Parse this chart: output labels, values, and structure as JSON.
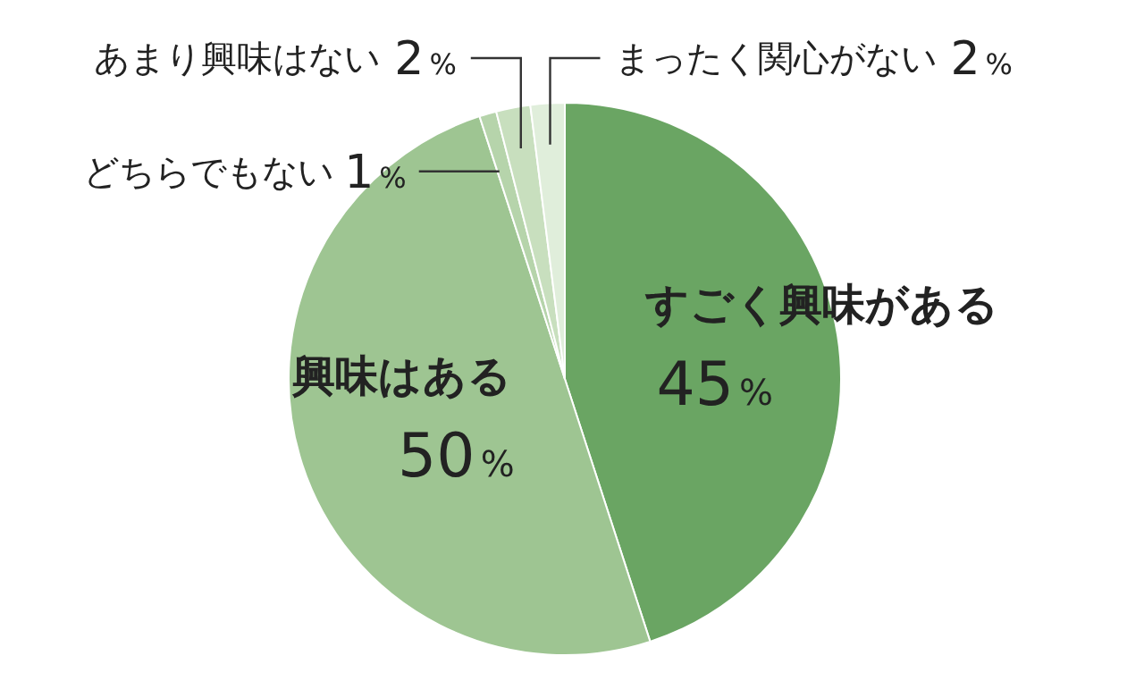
{
  "chart_data": {
    "type": "pie",
    "categories": [
      "すごく興味がある",
      "興味はある",
      "どちらでもない",
      "あまり興味はない",
      "まったく関心がない"
    ],
    "values": [
      45,
      50,
      1,
      2,
      2
    ],
    "colors": [
      "#6aa563",
      "#9ec592",
      "#b6d4ab",
      "#c8dfbe",
      "#e0eedb"
    ],
    "value_labels": [
      "45%",
      "50%",
      "1%",
      "2%",
      "2%"
    ],
    "legend": false
  }
}
